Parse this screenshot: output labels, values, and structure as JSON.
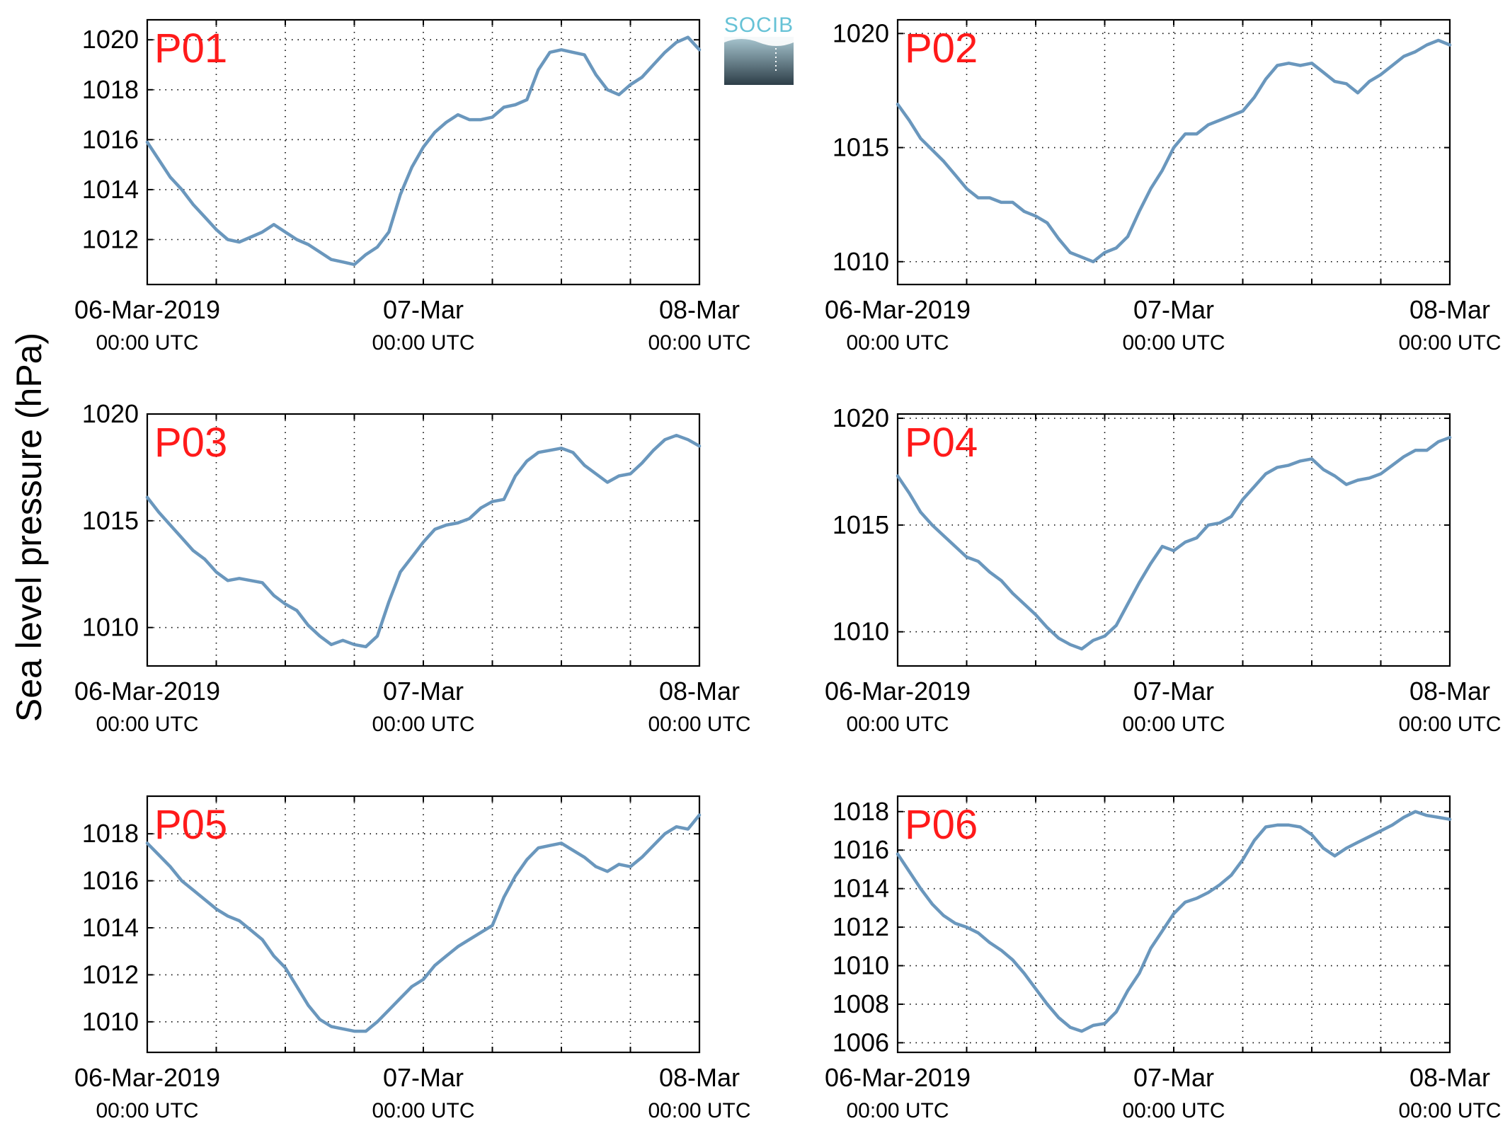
{
  "figure": {
    "ylabel": "Sea level pressure (hPa)",
    "logo_text": "SOCIB",
    "series_color": "#6a97bd",
    "tag_color": "#ff1a1a",
    "logo_colors": {
      "text": "#66c2d6",
      "top": "#a9c7d1",
      "bottom": "#2d3e48"
    }
  },
  "chart_data": [
    {
      "type": "line",
      "tag": "P01",
      "x_ticks": [
        {
          "main": "06-Mar-2019",
          "sub": "00:00 UTC"
        },
        {
          "main": "07-Mar",
          "sub": "00:00 UTC"
        },
        {
          "main": "08-Mar",
          "sub": "00:00 UTC"
        }
      ],
      "xlim_hours": [
        0,
        48
      ],
      "ylim": [
        1010.2,
        1020.8
      ],
      "y_ticks": [
        1012,
        1014,
        1016,
        1018,
        1020
      ],
      "grid": true,
      "x": [
        0,
        1,
        2,
        3,
        4,
        5,
        6,
        7,
        8,
        9,
        10,
        11,
        12,
        13,
        14,
        15,
        16,
        17,
        18,
        19,
        20,
        21,
        22,
        23,
        24,
        25,
        26,
        27,
        28,
        29,
        30,
        31,
        32,
        33,
        34,
        35,
        36,
        37,
        38,
        39,
        40,
        41,
        42,
        43,
        44,
        45,
        46,
        47,
        48
      ],
      "y": [
        1015.9,
        1015.2,
        1014.5,
        1014.0,
        1013.4,
        1012.9,
        1012.4,
        1012.0,
        1011.9,
        1012.1,
        1012.3,
        1012.6,
        1012.3,
        1012.0,
        1011.8,
        1011.5,
        1011.2,
        1011.1,
        1011.0,
        1011.4,
        1011.7,
        1012.3,
        1013.8,
        1014.9,
        1015.7,
        1016.3,
        1016.7,
        1017.0,
        1016.8,
        1016.8,
        1016.9,
        1017.3,
        1017.4,
        1017.6,
        1018.8,
        1019.5,
        1019.6,
        1019.5,
        1019.4,
        1018.6,
        1018.0,
        1017.8,
        1018.2,
        1018.5,
        1019.0,
        1019.5,
        1019.9,
        1020.1,
        1019.6
      ]
    },
    {
      "type": "line",
      "tag": "P02",
      "x_ticks": [
        {
          "main": "06-Mar-2019",
          "sub": "00:00 UTC"
        },
        {
          "main": "07-Mar",
          "sub": "00:00 UTC"
        },
        {
          "main": "08-Mar",
          "sub": "00:00 UTC"
        }
      ],
      "xlim_hours": [
        0,
        48
      ],
      "ylim": [
        1009.0,
        1020.6
      ],
      "y_ticks": [
        1010,
        1015,
        1020
      ],
      "grid": true,
      "x": [
        0,
        1,
        2,
        3,
        4,
        5,
        6,
        7,
        8,
        9,
        10,
        11,
        12,
        13,
        14,
        15,
        16,
        17,
        18,
        19,
        20,
        21,
        22,
        23,
        24,
        25,
        26,
        27,
        28,
        29,
        30,
        31,
        32,
        33,
        34,
        35,
        36,
        37,
        38,
        39,
        40,
        41,
        42,
        43,
        44,
        45,
        46,
        47,
        48
      ],
      "y": [
        1016.9,
        1016.2,
        1015.4,
        1014.9,
        1014.4,
        1013.8,
        1013.2,
        1012.8,
        1012.8,
        1012.6,
        1012.6,
        1012.2,
        1012.0,
        1011.7,
        1011.0,
        1010.4,
        1010.2,
        1010.0,
        1010.4,
        1010.6,
        1011.1,
        1012.2,
        1013.2,
        1014.0,
        1015.0,
        1015.6,
        1015.6,
        1016.0,
        1016.2,
        1016.4,
        1016.6,
        1017.2,
        1018.0,
        1018.6,
        1018.7,
        1018.6,
        1018.7,
        1018.3,
        1017.9,
        1017.8,
        1017.4,
        1017.9,
        1018.2,
        1018.6,
        1019.0,
        1019.2,
        1019.5,
        1019.7,
        1019.5
      ]
    },
    {
      "type": "line",
      "tag": "P03",
      "x_ticks": [
        {
          "main": "06-Mar-2019",
          "sub": "00:00 UTC"
        },
        {
          "main": "07-Mar",
          "sub": "00:00 UTC"
        },
        {
          "main": "08-Mar",
          "sub": "00:00 UTC"
        }
      ],
      "xlim_hours": [
        0,
        48
      ],
      "ylim": [
        1008.2,
        1020.0
      ],
      "y_ticks": [
        1010,
        1015,
        1020
      ],
      "grid": true,
      "x": [
        0,
        1,
        2,
        3,
        4,
        5,
        6,
        7,
        8,
        9,
        10,
        11,
        12,
        13,
        14,
        15,
        16,
        17,
        18,
        19,
        20,
        21,
        22,
        23,
        24,
        25,
        26,
        27,
        28,
        29,
        30,
        31,
        32,
        33,
        34,
        35,
        36,
        37,
        38,
        39,
        40,
        41,
        42,
        43,
        44,
        45,
        46,
        47,
        48
      ],
      "y": [
        1016.1,
        1015.4,
        1014.8,
        1014.2,
        1013.6,
        1013.2,
        1012.6,
        1012.2,
        1012.3,
        1012.2,
        1012.1,
        1011.5,
        1011.1,
        1010.8,
        1010.1,
        1009.6,
        1009.2,
        1009.4,
        1009.2,
        1009.1,
        1009.6,
        1011.2,
        1012.6,
        1013.3,
        1014.0,
        1014.6,
        1014.8,
        1014.9,
        1015.1,
        1015.6,
        1015.9,
        1016.0,
        1017.1,
        1017.8,
        1018.2,
        1018.3,
        1018.4,
        1018.2,
        1017.6,
        1017.2,
        1016.8,
        1017.1,
        1017.2,
        1017.7,
        1018.3,
        1018.8,
        1019.0,
        1018.8,
        1018.5
      ]
    },
    {
      "type": "line",
      "tag": "P04",
      "x_ticks": [
        {
          "main": "06-Mar-2019",
          "sub": "00:00 UTC"
        },
        {
          "main": "07-Mar",
          "sub": "00:00 UTC"
        },
        {
          "main": "08-Mar",
          "sub": "00:00 UTC"
        }
      ],
      "xlim_hours": [
        0,
        48
      ],
      "ylim": [
        1008.4,
        1020.2
      ],
      "y_ticks": [
        1010,
        1015,
        1020
      ],
      "grid": true,
      "x": [
        0,
        1,
        2,
        3,
        4,
        5,
        6,
        7,
        8,
        9,
        10,
        11,
        12,
        13,
        14,
        15,
        16,
        17,
        18,
        19,
        20,
        21,
        22,
        23,
        24,
        25,
        26,
        27,
        28,
        29,
        30,
        31,
        32,
        33,
        34,
        35,
        36,
        37,
        38,
        39,
        40,
        41,
        42,
        43,
        44,
        45,
        46,
        47,
        48
      ],
      "y": [
        1017.3,
        1016.5,
        1015.6,
        1015.0,
        1014.5,
        1014.0,
        1013.5,
        1013.3,
        1012.8,
        1012.4,
        1011.8,
        1011.3,
        1010.8,
        1010.2,
        1009.7,
        1009.4,
        1009.2,
        1009.6,
        1009.8,
        1010.3,
        1011.3,
        1012.3,
        1013.2,
        1014.0,
        1013.8,
        1014.2,
        1014.4,
        1015.0,
        1015.1,
        1015.4,
        1016.2,
        1016.8,
        1017.4,
        1017.7,
        1017.8,
        1018.0,
        1018.1,
        1017.6,
        1017.3,
        1016.9,
        1017.1,
        1017.2,
        1017.4,
        1017.8,
        1018.2,
        1018.5,
        1018.5,
        1018.9,
        1019.1
      ]
    },
    {
      "type": "line",
      "tag": "P05",
      "x_ticks": [
        {
          "main": "06-Mar-2019",
          "sub": "00:00 UTC"
        },
        {
          "main": "07-Mar",
          "sub": "00:00 UTC"
        },
        {
          "main": "08-Mar",
          "sub": "00:00 UTC"
        }
      ],
      "xlim_hours": [
        0,
        48
      ],
      "ylim": [
        1008.7,
        1019.6
      ],
      "y_ticks": [
        1010,
        1012,
        1014,
        1016,
        1018
      ],
      "grid": true,
      "x": [
        0,
        1,
        2,
        3,
        4,
        5,
        6,
        7,
        8,
        9,
        10,
        11,
        12,
        13,
        14,
        15,
        16,
        17,
        18,
        19,
        20,
        21,
        22,
        23,
        24,
        25,
        26,
        27,
        28,
        29,
        30,
        31,
        32,
        33,
        34,
        35,
        36,
        37,
        38,
        39,
        40,
        41,
        42,
        43,
        44,
        45,
        46,
        47,
        48
      ],
      "y": [
        1017.6,
        1017.1,
        1016.6,
        1016.0,
        1015.6,
        1015.2,
        1014.8,
        1014.5,
        1014.3,
        1013.9,
        1013.5,
        1012.8,
        1012.3,
        1011.5,
        1010.7,
        1010.1,
        1009.8,
        1009.7,
        1009.6,
        1009.6,
        1010.0,
        1010.5,
        1011.0,
        1011.5,
        1011.8,
        1012.4,
        1012.8,
        1013.2,
        1013.5,
        1013.8,
        1014.1,
        1015.3,
        1016.2,
        1016.9,
        1017.4,
        1017.5,
        1017.6,
        1017.3,
        1017.0,
        1016.6,
        1016.4,
        1016.7,
        1016.6,
        1017.0,
        1017.5,
        1018.0,
        1018.3,
        1018.2,
        1018.8
      ]
    },
    {
      "type": "line",
      "tag": "P06",
      "x_ticks": [
        {
          "main": "06-Mar-2019",
          "sub": "00:00 UTC"
        },
        {
          "main": "07-Mar",
          "sub": "00:00 UTC"
        },
        {
          "main": "08-Mar",
          "sub": "00:00 UTC"
        }
      ],
      "xlim_hours": [
        0,
        48
      ],
      "ylim": [
        1005.5,
        1018.8
      ],
      "y_ticks": [
        1006,
        1008,
        1010,
        1012,
        1014,
        1016,
        1018
      ],
      "grid": true,
      "x": [
        0,
        1,
        2,
        3,
        4,
        5,
        6,
        7,
        8,
        9,
        10,
        11,
        12,
        13,
        14,
        15,
        16,
        17,
        18,
        19,
        20,
        21,
        22,
        23,
        24,
        25,
        26,
        27,
        28,
        29,
        30,
        31,
        32,
        33,
        34,
        35,
        36,
        37,
        38,
        39,
        40,
        41,
        42,
        43,
        44,
        45,
        46,
        47,
        48
      ],
      "y": [
        1015.8,
        1014.9,
        1014.0,
        1013.2,
        1012.6,
        1012.2,
        1012.0,
        1011.7,
        1011.2,
        1010.8,
        1010.3,
        1009.6,
        1008.8,
        1008.0,
        1007.3,
        1006.8,
        1006.6,
        1006.9,
        1007.0,
        1007.6,
        1008.7,
        1009.6,
        1010.9,
        1011.8,
        1012.7,
        1013.3,
        1013.5,
        1013.8,
        1014.2,
        1014.7,
        1015.5,
        1016.5,
        1017.2,
        1017.3,
        1017.3,
        1017.2,
        1016.8,
        1016.1,
        1015.7,
        1016.1,
        1016.4,
        1016.7,
        1017.0,
        1017.3,
        1017.7,
        1018.0,
        1017.8,
        1017.7,
        1017.6
      ]
    }
  ]
}
